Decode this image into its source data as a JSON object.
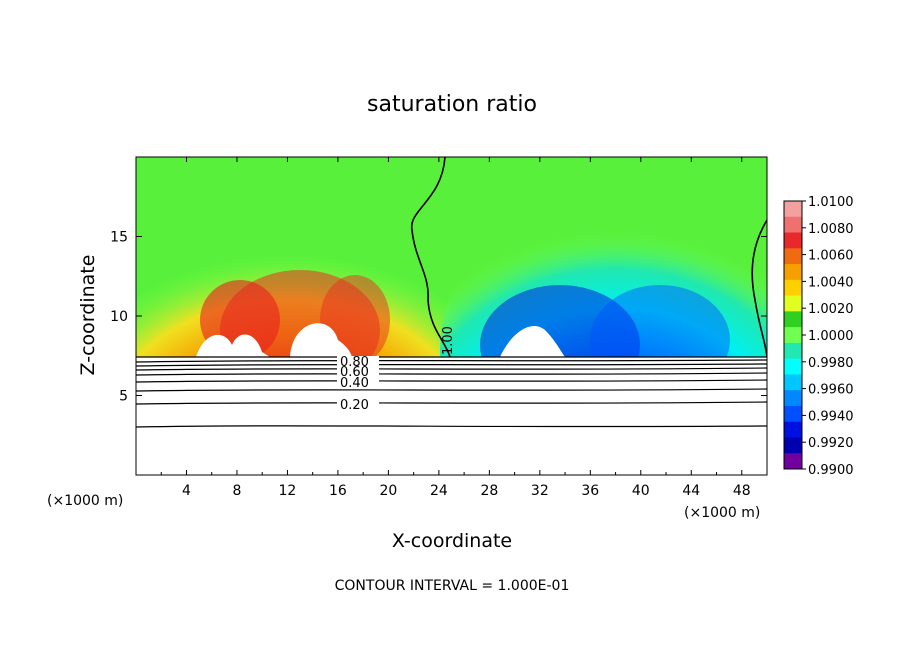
{
  "chart_data": {
    "type": "heatmap",
    "title": "saturation ratio",
    "xlabel": "X-coordinate",
    "ylabel": "Z-coordinate",
    "x_unit_label": "(×1000 m)",
    "x_unit_label_right": "(×1000 m)",
    "xlim": [
      0,
      50
    ],
    "ylim": [
      0,
      20
    ],
    "x_ticks": [
      "4",
      "8",
      "12",
      "16",
      "20",
      "24",
      "28",
      "32",
      "36",
      "40",
      "44",
      "48"
    ],
    "y_ticks": [
      "5",
      "10",
      "15"
    ],
    "colorbar": {
      "levels": [
        "1.0100",
        "1.0080",
        "1.0060",
        "1.0040",
        "1.0020",
        "1.0000",
        "0.9980",
        "0.9960",
        "0.9940",
        "0.9920",
        "0.9900"
      ],
      "colors": [
        "#f2a0a0",
        "#f07070",
        "#e8282a",
        "#f06a10",
        "#f5a000",
        "#ffd000",
        "#e0ff20",
        "#30d020",
        "#70ff50",
        "#20e8b0",
        "#00ffff",
        "#00c8ff",
        "#0088ff",
        "#0050ff",
        "#0010e0",
        "#0000b0",
        "#7000a0"
      ]
    },
    "contour_labels": [
      "1.00",
      "0.80",
      "0.60",
      "0.40",
      "0.20"
    ],
    "contour_levels_below_cloud": [
      1.0,
      0.9,
      0.8,
      0.7,
      0.6,
      0.5,
      0.4,
      0.3,
      0.2,
      0.1
    ],
    "note": "CONTOUR INTERVAL = 1.000E-01"
  }
}
